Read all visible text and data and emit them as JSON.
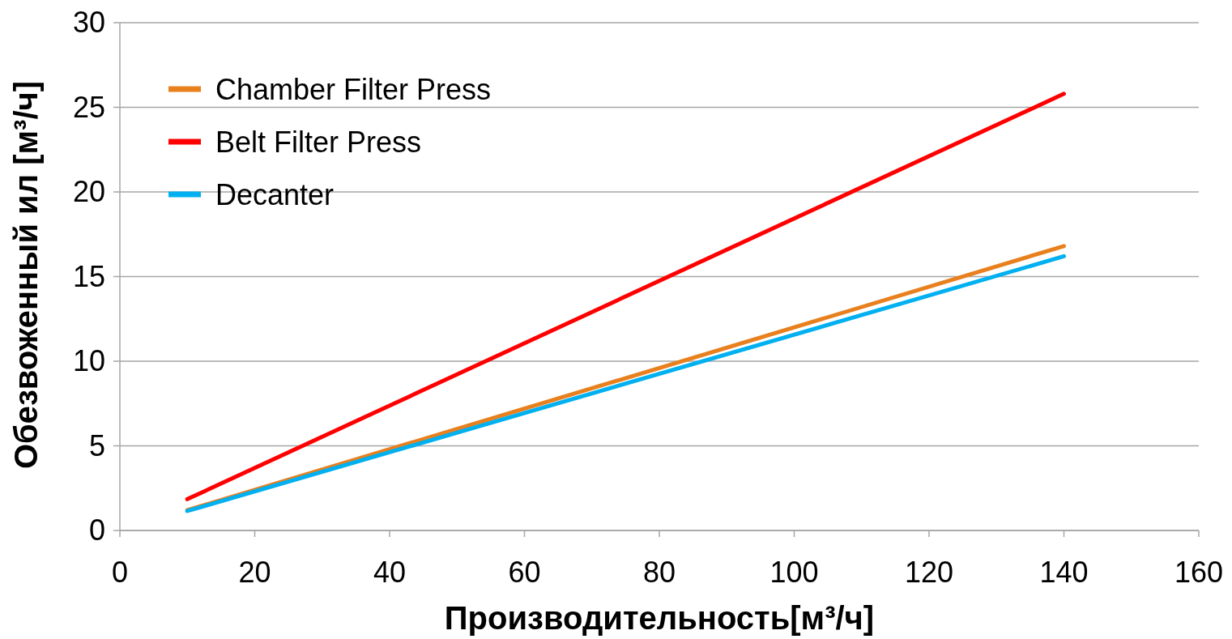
{
  "chart_data": {
    "type": "line",
    "xlabel": "Производительность[м³/ч]",
    "ylabel": "Обезвоженный ил [м³/ч]",
    "x": [
      10,
      140
    ],
    "series": [
      {
        "name": "Chamber Filter Press",
        "color": "#e8801e",
        "values": [
          1.2,
          16.8
        ]
      },
      {
        "name": "Belt Filter Press",
        "color": "#ff0000",
        "values": [
          1.85,
          25.8
        ]
      },
      {
        "name": "Decanter",
        "color": "#00b0f0",
        "values": [
          1.15,
          16.2
        ]
      }
    ],
    "xlim": [
      0,
      160
    ],
    "xticks": [
      0,
      20,
      40,
      60,
      80,
      100,
      120,
      140,
      160
    ],
    "ylim": [
      0,
      30
    ],
    "yticks": [
      0,
      5,
      10,
      15,
      20,
      25,
      30
    ],
    "grid": "y",
    "legend": "top left",
    "marker": "none",
    "line_style": "solid"
  }
}
